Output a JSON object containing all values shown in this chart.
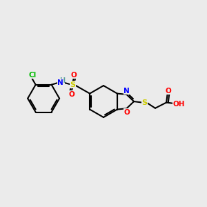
{
  "bg_color": "#ebebeb",
  "bond_color": "#000000",
  "colors": {
    "N": "#0000ff",
    "O": "#ff0000",
    "S": "#cccc00",
    "Cl": "#00bb00",
    "H": "#5f9ea0"
  },
  "figsize": [
    3.0,
    3.0
  ],
  "dpi": 100
}
